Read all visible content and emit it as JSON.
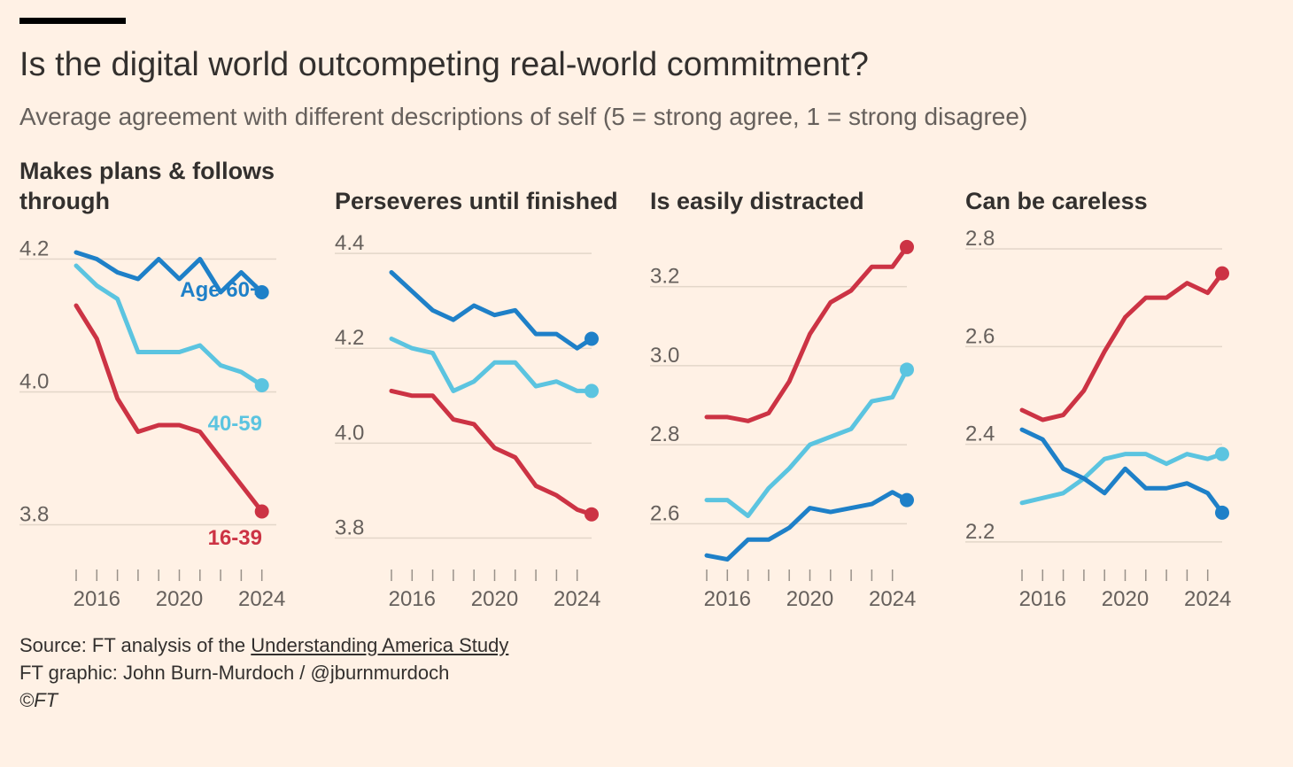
{
  "header": {
    "title": "Is the digital world outcompeting real-world commitment?",
    "subtitle": "Average agreement with different descriptions of self (5 = strong agree, 1 = strong disagree)"
  },
  "colors": {
    "16-39": "#CC3344",
    "40-59": "#5BC4E0",
    "60+": "#1E80C8",
    "grid": "#E3D6C9",
    "text": "#33302E",
    "muted": "#66605C"
  },
  "series_labels": {
    "age60": "Age 60+",
    "age40": "40-59",
    "age16": "16-39"
  },
  "footer": {
    "source_prefix": "Source: FT analysis of the ",
    "source_link": "Understanding America Study",
    "credit": "FT graphic: John Burn-Murdoch / @jburnmurdoch",
    "copyright": "©FT"
  },
  "chart_data": [
    {
      "type": "line",
      "title": "Makes plans & follows through",
      "x": [
        2015,
        2016,
        2017,
        2018,
        2019,
        2020,
        2021,
        2022,
        2023,
        2024,
        2025
      ],
      "x_ticks": [
        "2016",
        "2020",
        "2024"
      ],
      "ylim": [
        3.73,
        4.23
      ],
      "y_ticks": [
        "3.8",
        "4.0",
        "4.2"
      ],
      "series": [
        {
          "name": "Age 60+",
          "key": "60+",
          "values": [
            4.21,
            4.2,
            4.18,
            4.17,
            4.2,
            4.17,
            4.2,
            4.15,
            4.18,
            4.15,
            null
          ]
        },
        {
          "name": "40-59",
          "key": "40-59",
          "values": [
            4.19,
            4.16,
            4.14,
            4.06,
            4.06,
            4.06,
            4.07,
            4.04,
            4.03,
            4.01,
            null
          ]
        },
        {
          "name": "16-39",
          "key": "16-39",
          "values": [
            4.13,
            4.08,
            3.99,
            3.94,
            3.95,
            3.95,
            3.94,
            3.9,
            3.86,
            3.82,
            null
          ]
        }
      ]
    },
    {
      "type": "line",
      "title": "Perseveres until finished",
      "x": [
        2015,
        2016,
        2017,
        2018,
        2019,
        2020,
        2021,
        2022,
        2023,
        2024,
        2025
      ],
      "x_ticks": [
        "2016",
        "2020",
        "2024"
      ],
      "ylim": [
        3.73,
        4.43
      ],
      "y_ticks": [
        "3.8",
        "4.0",
        "4.2",
        "4.4"
      ],
      "series": [
        {
          "name": "60+",
          "key": "60+",
          "values": [
            4.36,
            4.32,
            4.28,
            4.26,
            4.29,
            4.27,
            4.28,
            4.23,
            4.23,
            4.2,
            4.22
          ]
        },
        {
          "name": "40-59",
          "key": "40-59",
          "values": [
            4.22,
            4.2,
            4.19,
            4.11,
            4.13,
            4.17,
            4.17,
            4.12,
            4.13,
            4.11,
            4.11
          ]
        },
        {
          "name": "16-39",
          "key": "16-39",
          "values": [
            4.11,
            4.1,
            4.1,
            4.05,
            4.04,
            3.99,
            3.97,
            3.91,
            3.89,
            3.86,
            3.85
          ]
        }
      ]
    },
    {
      "type": "line",
      "title": "Is easily distracted",
      "x": [
        2015,
        2016,
        2017,
        2018,
        2019,
        2020,
        2021,
        2022,
        2023,
        2024,
        2025
      ],
      "x_ticks": [
        "2016",
        "2020",
        "2024"
      ],
      "ylim": [
        2.48,
        3.32
      ],
      "y_ticks": [
        "2.6",
        "2.8",
        "3.0",
        "3.2"
      ],
      "series": [
        {
          "name": "60+",
          "key": "60+",
          "values": [
            2.52,
            2.51,
            2.56,
            2.56,
            2.59,
            2.64,
            2.63,
            2.64,
            2.65,
            2.68,
            2.66
          ]
        },
        {
          "name": "40-59",
          "key": "40-59",
          "values": [
            2.66,
            2.66,
            2.62,
            2.69,
            2.74,
            2.8,
            2.82,
            2.84,
            2.91,
            2.92,
            2.99
          ]
        },
        {
          "name": "16-39",
          "key": "16-39",
          "values": [
            2.87,
            2.87,
            2.86,
            2.88,
            2.96,
            3.08,
            3.16,
            3.19,
            3.25,
            3.25,
            3.3
          ]
        }
      ]
    },
    {
      "type": "line",
      "title": "Can be careless",
      "x": [
        2015,
        2016,
        2017,
        2018,
        2019,
        2020,
        2021,
        2022,
        2023,
        2024,
        2025
      ],
      "x_ticks": [
        "2016",
        "2020",
        "2024"
      ],
      "ylim": [
        2.14,
        2.82
      ],
      "y_ticks": [
        "2.2",
        "2.4",
        "2.6",
        "2.8"
      ],
      "series": [
        {
          "name": "60+",
          "key": "60+",
          "values": [
            2.43,
            2.41,
            2.35,
            2.33,
            2.3,
            2.35,
            2.31,
            2.31,
            2.32,
            2.3,
            2.26
          ]
        },
        {
          "name": "40-59",
          "key": "40-59",
          "values": [
            2.28,
            2.29,
            2.3,
            2.33,
            2.37,
            2.38,
            2.38,
            2.36,
            2.38,
            2.37,
            2.38
          ]
        },
        {
          "name": "16-39",
          "key": "16-39",
          "values": [
            2.47,
            2.45,
            2.46,
            2.51,
            2.59,
            2.66,
            2.7,
            2.7,
            2.73,
            2.71,
            2.75
          ]
        }
      ]
    }
  ]
}
